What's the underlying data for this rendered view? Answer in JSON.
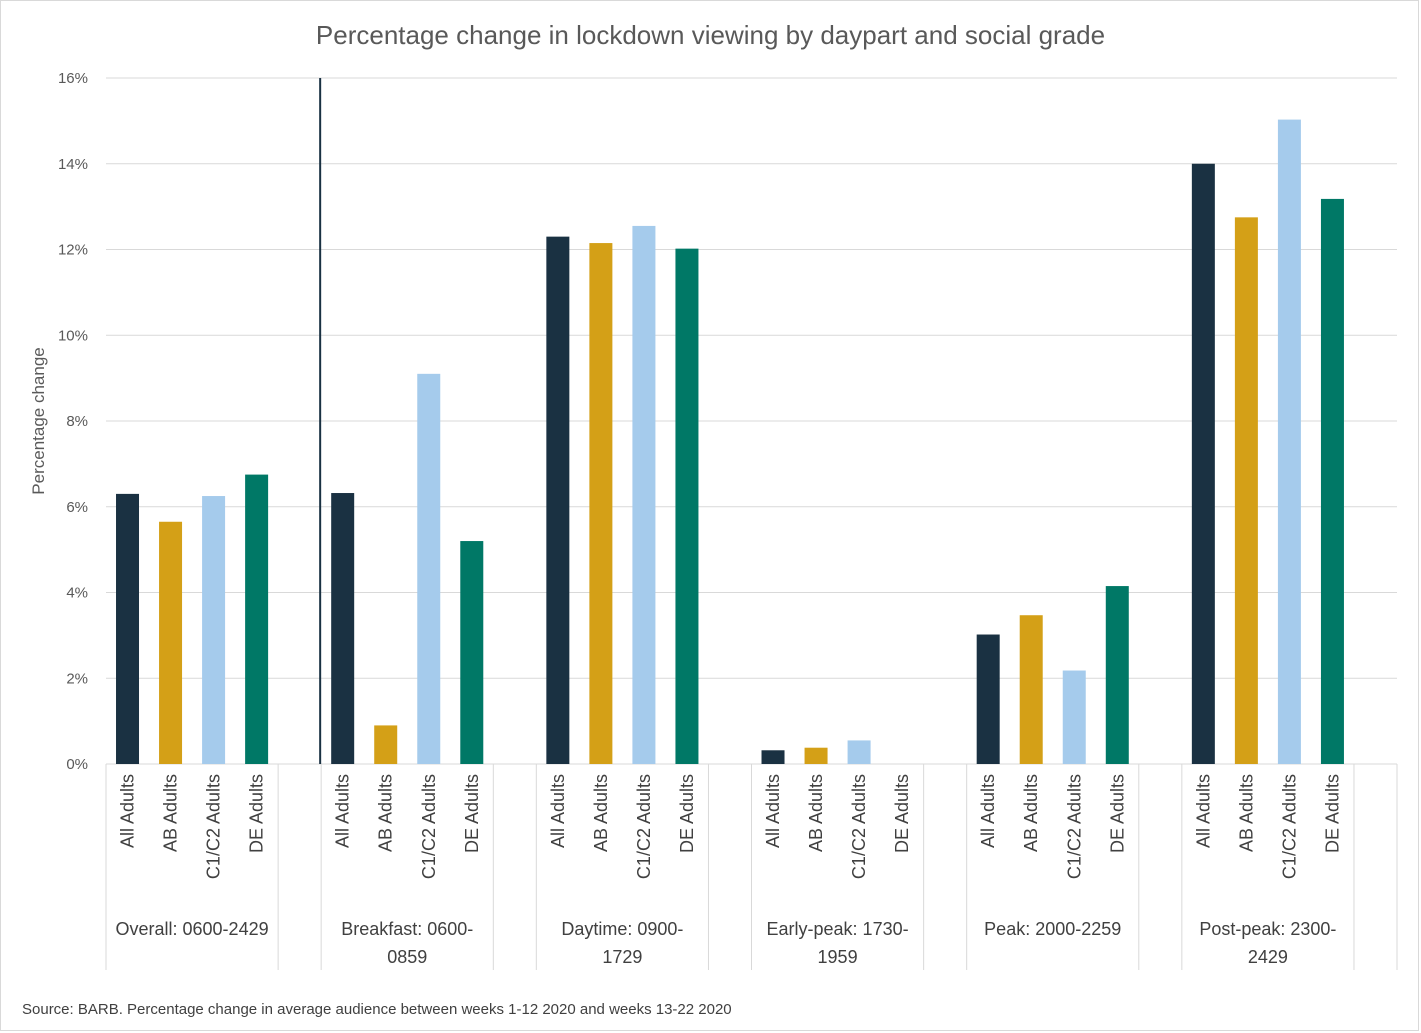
{
  "chart_data": {
    "type": "bar",
    "title": "Percentage change in lockdown viewing by daypart and social grade",
    "ylabel": "Percentage change",
    "ylim": [
      0,
      16
    ],
    "yticks": [
      "0%",
      "2%",
      "4%",
      "6%",
      "8%",
      "10%",
      "12%",
      "14%",
      "16%"
    ],
    "grid": true,
    "groups": [
      {
        "label_lines": [
          "Overall: 0600-2429"
        ],
        "categories": [
          "All Adults",
          "AB Adults",
          "C1/C2 Adults",
          "DE Adults"
        ],
        "values": [
          6.3,
          5.65,
          6.25,
          6.75
        ]
      },
      {
        "label_lines": [
          "Breakfast: 0600-",
          "0859"
        ],
        "categories": [
          "All Adults",
          "AB Adults",
          "C1/C2 Adults",
          "DE Adults"
        ],
        "values": [
          6.32,
          0.9,
          9.1,
          5.2
        ]
      },
      {
        "label_lines": [
          "Daytime: 0900-",
          "1729"
        ],
        "categories": [
          "All Adults",
          "AB Adults",
          "C1/C2 Adults",
          "DE Adults"
        ],
        "values": [
          12.3,
          12.15,
          12.55,
          12.02
        ]
      },
      {
        "label_lines": [
          "Early-peak: 1730-",
          "1959"
        ],
        "categories": [
          "All Adults",
          "AB Adults",
          "C1/C2 Adults",
          "DE Adults"
        ],
        "values": [
          0.32,
          0.38,
          0.55,
          0.0
        ]
      },
      {
        "label_lines": [
          "Peak: 2000-2259"
        ],
        "categories": [
          "All Adults",
          "AB Adults",
          "C1/C2 Adults",
          "DE Adults"
        ],
        "values": [
          3.02,
          3.47,
          2.18,
          4.15
        ]
      },
      {
        "label_lines": [
          "Post-peak: 2300-",
          "2429"
        ],
        "categories": [
          "All Adults",
          "AB Adults",
          "C1/C2 Adults",
          "DE Adults"
        ],
        "values": [
          14.0,
          12.75,
          15.03,
          13.18
        ]
      }
    ],
    "series_colors": [
      "#1a3142",
      "#d4a017",
      "#a5cbec",
      "#007866"
    ],
    "divider_after_group": 0
  },
  "footer": "Source: BARB.  Percentage change in average audience between weeks 1-12 2020 and weeks 13-22 2020"
}
